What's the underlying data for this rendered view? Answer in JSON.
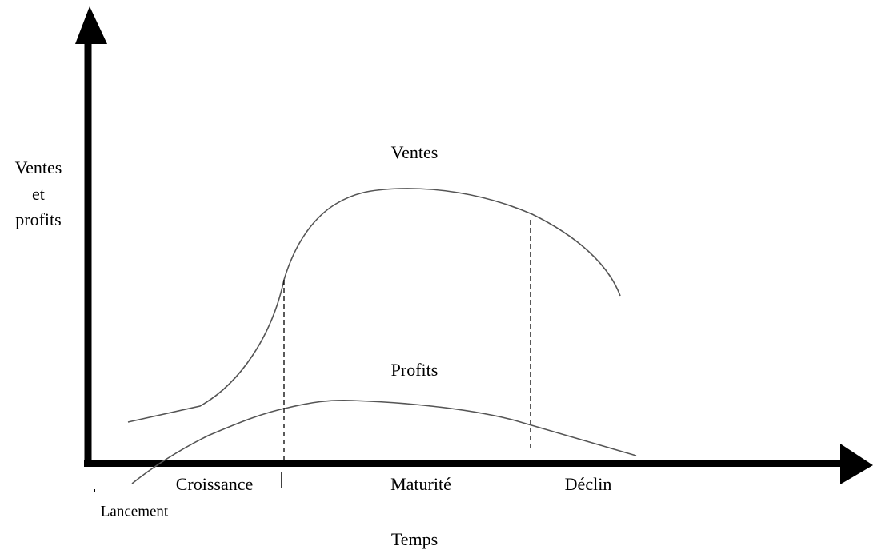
{
  "axis_label_y": [
    "Ventes",
    "et",
    "profits"
  ],
  "axis_label_x": "Temps",
  "curves": {
    "sales": "Ventes",
    "profits": "Profits"
  },
  "stages": [
    "Lancement",
    "Croissance",
    "Maturité",
    "Déclin"
  ]
}
